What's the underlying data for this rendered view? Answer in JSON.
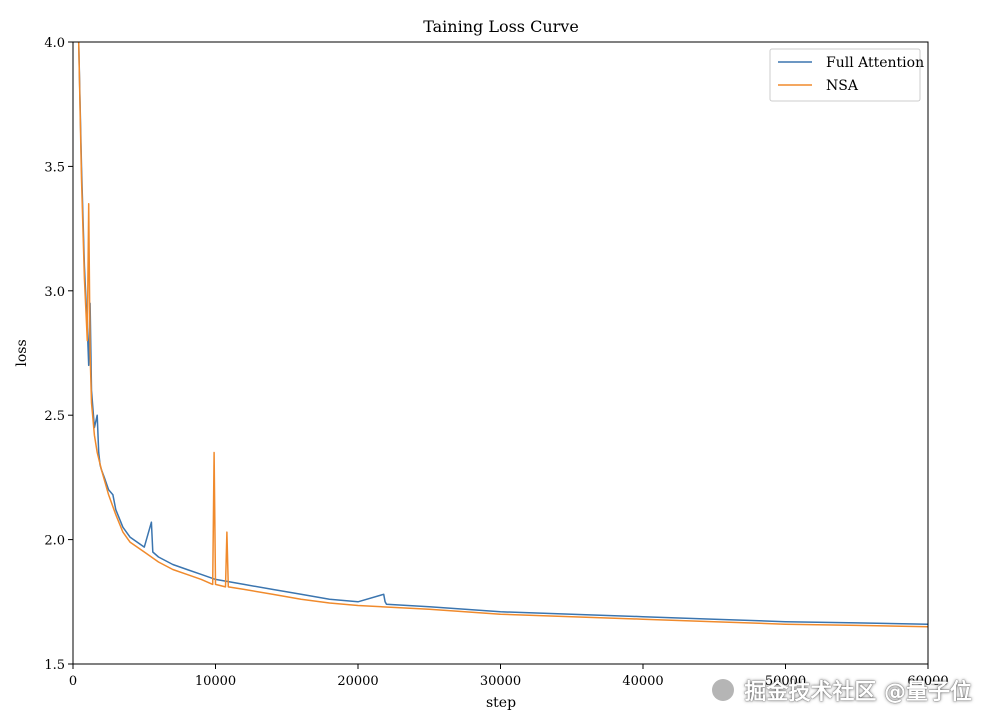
{
  "chart_data": {
    "type": "line",
    "title": "Taining Loss Curve",
    "xlabel": "step",
    "ylabel": "loss",
    "xlim": [
      0,
      60000
    ],
    "ylim": [
      1.5,
      4.0
    ],
    "xticks": [
      0,
      10000,
      20000,
      30000,
      40000,
      50000,
      60000
    ],
    "xtick_labels": [
      "0",
      "10000",
      "20000",
      "30000",
      "40000",
      "50000",
      "60000"
    ],
    "yticks": [
      1.5,
      2.0,
      2.5,
      3.0,
      3.5,
      4.0
    ],
    "ytick_labels": [
      "1.5",
      "2.0",
      "2.5",
      "3.0",
      "3.5",
      "4.0"
    ],
    "grid": false,
    "legend_position": "top-right",
    "series": [
      {
        "name": "Full Attention",
        "color": "#3b75af",
        "x": [
          400,
          600,
          800,
          1000,
          1100,
          1200,
          1300,
          1500,
          1700,
          1800,
          1900,
          2000,
          2200,
          2500,
          2800,
          3000,
          3500,
          4000,
          5000,
          5500,
          5600,
          6000,
          7000,
          8000,
          9000,
          10000,
          11000,
          12000,
          14000,
          16000,
          18000,
          20000,
          21800,
          21900,
          22000,
          25000,
          30000,
          35000,
          40000,
          45000,
          50000,
          55000,
          60000
        ],
        "y": [
          4.0,
          3.5,
          3.1,
          2.85,
          2.7,
          2.95,
          2.6,
          2.45,
          2.5,
          2.35,
          2.3,
          2.28,
          2.25,
          2.2,
          2.18,
          2.12,
          2.05,
          2.01,
          1.97,
          2.07,
          1.95,
          1.93,
          1.9,
          1.88,
          1.86,
          1.84,
          1.83,
          1.82,
          1.8,
          1.78,
          1.76,
          1.75,
          1.78,
          1.75,
          1.74,
          1.73,
          1.71,
          1.7,
          1.69,
          1.68,
          1.67,
          1.665,
          1.66
        ]
      },
      {
        "name": "NSA",
        "color": "#f08a2c",
        "x": [
          400,
          600,
          800,
          1000,
          1100,
          1200,
          1300,
          1500,
          1700,
          2000,
          2500,
          3000,
          3500,
          4000,
          5000,
          6000,
          7000,
          8000,
          9000,
          9800,
          9900,
          10000,
          10700,
          10800,
          10900,
          12000,
          14000,
          16000,
          18000,
          20000,
          25000,
          30000,
          35000,
          40000,
          45000,
          50000,
          55000,
          60000
        ],
        "y": [
          4.0,
          3.45,
          3.05,
          2.8,
          3.35,
          2.75,
          2.55,
          2.42,
          2.35,
          2.28,
          2.18,
          2.1,
          2.03,
          1.99,
          1.95,
          1.91,
          1.88,
          1.86,
          1.84,
          1.82,
          2.35,
          1.82,
          1.81,
          2.03,
          1.81,
          1.8,
          1.78,
          1.76,
          1.745,
          1.735,
          1.72,
          1.7,
          1.69,
          1.68,
          1.67,
          1.66,
          1.655,
          1.65
        ]
      }
    ]
  },
  "watermark": {
    "text": "掘金技术社区 @量子位"
  }
}
